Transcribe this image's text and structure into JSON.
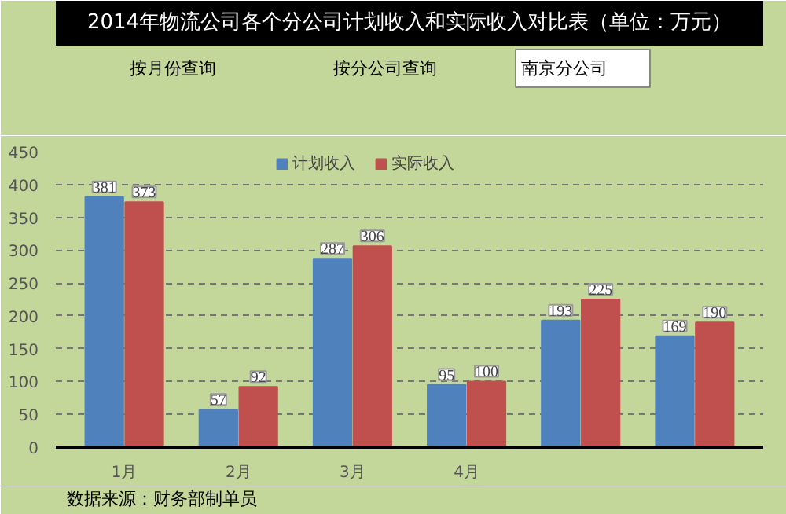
{
  "chart_data": {
    "type": "bar",
    "title": "2014年物流公司各个分公司计划收入和实际收入对比表（单位：万元）",
    "categories": [
      "1月",
      "2月",
      "3月",
      "4月",
      null,
      null
    ],
    "series": [
      {
        "name": "计划收入",
        "color": "#4f81bd",
        "values": [
          381,
          57,
          287,
          95,
          193,
          169
        ]
      },
      {
        "name": "实际收入",
        "color": "#c0504d",
        "values": [
          373,
          92,
          306,
          100,
          225,
          190
        ]
      }
    ],
    "ylim": [
      0,
      450
    ],
    "yticks": [
      0,
      50,
      100,
      150,
      200,
      250,
      300,
      350,
      400,
      450
    ],
    "grid": "y",
    "legend": "top",
    "data_labels": true,
    "annotations": [
      "按月份查询",
      "按分公司查询",
      "南京分公司",
      "数据来源：财务部制单员"
    ]
  }
}
